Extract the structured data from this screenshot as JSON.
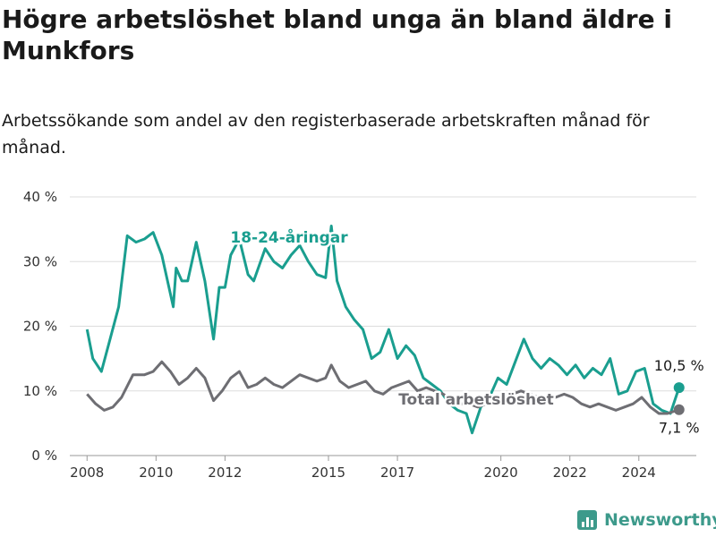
{
  "header": {
    "title": "Högre arbetslöshet bland unga än bland äldre i Munkfors",
    "subtitle": "Arbetssökande som andel av den registerbaserade arbetskraften månad för månad."
  },
  "footer": {
    "brand": "Newsworthy"
  },
  "chart_data": {
    "type": "line",
    "title": "Högre arbetslöshet bland unga än bland äldre i Munkfors",
    "subtitle": "Arbetssökande som andel av den registerbaserade arbetskraften månad för månad.",
    "xlabel": "",
    "ylabel": "",
    "ylim": [
      0,
      40
    ],
    "xlim": [
      "2007-07",
      "2025-09"
    ],
    "grid": true,
    "yticks": [
      0,
      10,
      20,
      30,
      40
    ],
    "ytick_labels": [
      "0 %",
      "10 %",
      "20 %",
      "30 %",
      "40 %"
    ],
    "xticks": [
      2008,
      2010,
      2012,
      2015,
      2017,
      2020,
      2022,
      2024
    ],
    "xtick_labels": [
      "2008",
      "2010",
      "2012",
      "2015",
      "2017",
      "2020",
      "2022",
      "2024"
    ],
    "colors": {
      "youth": "#1a9e8f",
      "total": "#6e6e73",
      "grid": "#dddddd",
      "brand": "#3d9a8b"
    },
    "series": [
      {
        "name": "18-24-åringar",
        "end_label": "10,5 %",
        "points": [
          [
            "2008-01",
            19.5
          ],
          [
            "2008-03",
            15.0
          ],
          [
            "2008-06",
            13.0
          ],
          [
            "2008-09",
            18.0
          ],
          [
            "2008-12",
            23.0
          ],
          [
            "2009-03",
            34.0
          ],
          [
            "2009-06",
            33.0
          ],
          [
            "2009-09",
            33.5
          ],
          [
            "2009-12",
            34.5
          ],
          [
            "2010-03",
            31.0
          ],
          [
            "2010-05",
            27.0
          ],
          [
            "2010-07",
            23.0
          ],
          [
            "2010-08",
            29.0
          ],
          [
            "2010-10",
            27.0
          ],
          [
            "2010-12",
            27.0
          ],
          [
            "2011-03",
            33.0
          ],
          [
            "2011-06",
            27.0
          ],
          [
            "2011-09",
            18.0
          ],
          [
            "2011-11",
            26.0
          ],
          [
            "2012-01",
            26.0
          ],
          [
            "2012-03",
            31.0
          ],
          [
            "2012-06",
            33.5
          ],
          [
            "2012-09",
            28.0
          ],
          [
            "2012-11",
            27.0
          ],
          [
            "2013-03",
            32.0
          ],
          [
            "2013-06",
            30.0
          ],
          [
            "2013-09",
            29.0
          ],
          [
            "2013-12",
            31.0
          ],
          [
            "2014-03",
            32.5
          ],
          [
            "2014-06",
            30.0
          ],
          [
            "2014-09",
            28.0
          ],
          [
            "2014-12",
            27.5
          ],
          [
            "2015-02",
            35.5
          ],
          [
            "2015-04",
            27.0
          ],
          [
            "2015-07",
            23.0
          ],
          [
            "2015-10",
            21.0
          ],
          [
            "2016-01",
            19.5
          ],
          [
            "2016-04",
            15.0
          ],
          [
            "2016-07",
            16.0
          ],
          [
            "2016-10",
            19.5
          ],
          [
            "2017-01",
            15.0
          ],
          [
            "2017-04",
            17.0
          ],
          [
            "2017-07",
            15.5
          ],
          [
            "2017-10",
            12.0
          ],
          [
            "2018-01",
            11.0
          ],
          [
            "2018-04",
            10.0
          ],
          [
            "2018-07",
            8.0
          ],
          [
            "2018-10",
            7.0
          ],
          [
            "2019-01",
            6.5
          ],
          [
            "2019-03",
            3.5
          ],
          [
            "2019-06",
            7.5
          ],
          [
            "2019-09",
            9.0
          ],
          [
            "2019-12",
            12.0
          ],
          [
            "2020-03",
            11.0
          ],
          [
            "2020-06",
            14.5
          ],
          [
            "2020-09",
            18.0
          ],
          [
            "2020-12",
            15.0
          ],
          [
            "2021-03",
            13.5
          ],
          [
            "2021-06",
            15.0
          ],
          [
            "2021-09",
            14.0
          ],
          [
            "2021-12",
            12.5
          ],
          [
            "2022-03",
            14.0
          ],
          [
            "2022-06",
            12.0
          ],
          [
            "2022-09",
            13.5
          ],
          [
            "2022-12",
            12.5
          ],
          [
            "2023-03",
            15.0
          ],
          [
            "2023-06",
            9.5
          ],
          [
            "2023-09",
            10.0
          ],
          [
            "2023-12",
            13.0
          ],
          [
            "2024-03",
            13.5
          ],
          [
            "2024-06",
            8.0
          ],
          [
            "2024-09",
            7.0
          ],
          [
            "2024-12",
            6.5
          ],
          [
            "2025-03",
            10.5
          ]
        ]
      },
      {
        "name": "Total arbetslöshet",
        "end_label": "7,1 %",
        "points": [
          [
            "2008-01",
            9.5
          ],
          [
            "2008-04",
            8.0
          ],
          [
            "2008-07",
            7.0
          ],
          [
            "2008-10",
            7.5
          ],
          [
            "2009-01",
            9.0
          ],
          [
            "2009-05",
            12.5
          ],
          [
            "2009-09",
            12.5
          ],
          [
            "2009-12",
            13.0
          ],
          [
            "2010-03",
            14.5
          ],
          [
            "2010-06",
            13.0
          ],
          [
            "2010-09",
            11.0
          ],
          [
            "2010-12",
            12.0
          ],
          [
            "2011-03",
            13.5
          ],
          [
            "2011-06",
            12.0
          ],
          [
            "2011-09",
            8.5
          ],
          [
            "2011-12",
            10.0
          ],
          [
            "2012-03",
            12.0
          ],
          [
            "2012-06",
            13.0
          ],
          [
            "2012-09",
            10.5
          ],
          [
            "2012-12",
            11.0
          ],
          [
            "2013-03",
            12.0
          ],
          [
            "2013-06",
            11.0
          ],
          [
            "2013-09",
            10.5
          ],
          [
            "2013-12",
            11.5
          ],
          [
            "2014-03",
            12.5
          ],
          [
            "2014-06",
            12.0
          ],
          [
            "2014-09",
            11.5
          ],
          [
            "2014-12",
            12.0
          ],
          [
            "2015-02",
            14.0
          ],
          [
            "2015-05",
            11.5
          ],
          [
            "2015-08",
            10.5
          ],
          [
            "2015-11",
            11.0
          ],
          [
            "2016-02",
            11.5
          ],
          [
            "2016-05",
            10.0
          ],
          [
            "2016-08",
            9.5
          ],
          [
            "2016-11",
            10.5
          ],
          [
            "2017-02",
            11.0
          ],
          [
            "2017-05",
            11.5
          ],
          [
            "2017-08",
            10.0
          ],
          [
            "2017-11",
            10.5
          ],
          [
            "2018-02",
            10.0
          ],
          [
            "2018-05",
            9.5
          ],
          [
            "2018-08",
            8.5
          ],
          [
            "2018-11",
            8.0
          ],
          [
            "2019-02",
            8.0
          ],
          [
            "2019-05",
            7.5
          ],
          [
            "2019-08",
            8.0
          ],
          [
            "2019-11",
            8.5
          ],
          [
            "2020-02",
            9.0
          ],
          [
            "2020-05",
            9.5
          ],
          [
            "2020-08",
            10.0
          ],
          [
            "2020-11",
            9.5
          ],
          [
            "2021-02",
            9.0
          ],
          [
            "2021-05",
            8.5
          ],
          [
            "2021-08",
            9.0
          ],
          [
            "2021-11",
            9.5
          ],
          [
            "2022-02",
            9.0
          ],
          [
            "2022-05",
            8.0
          ],
          [
            "2022-08",
            7.5
          ],
          [
            "2022-11",
            8.0
          ],
          [
            "2023-02",
            7.5
          ],
          [
            "2023-05",
            7.0
          ],
          [
            "2023-08",
            7.5
          ],
          [
            "2023-11",
            8.0
          ],
          [
            "2024-02",
            9.0
          ],
          [
            "2024-05",
            7.5
          ],
          [
            "2024-08",
            6.5
          ],
          [
            "2024-11",
            6.5
          ],
          [
            "2025-03",
            7.1
          ]
        ]
      }
    ]
  }
}
